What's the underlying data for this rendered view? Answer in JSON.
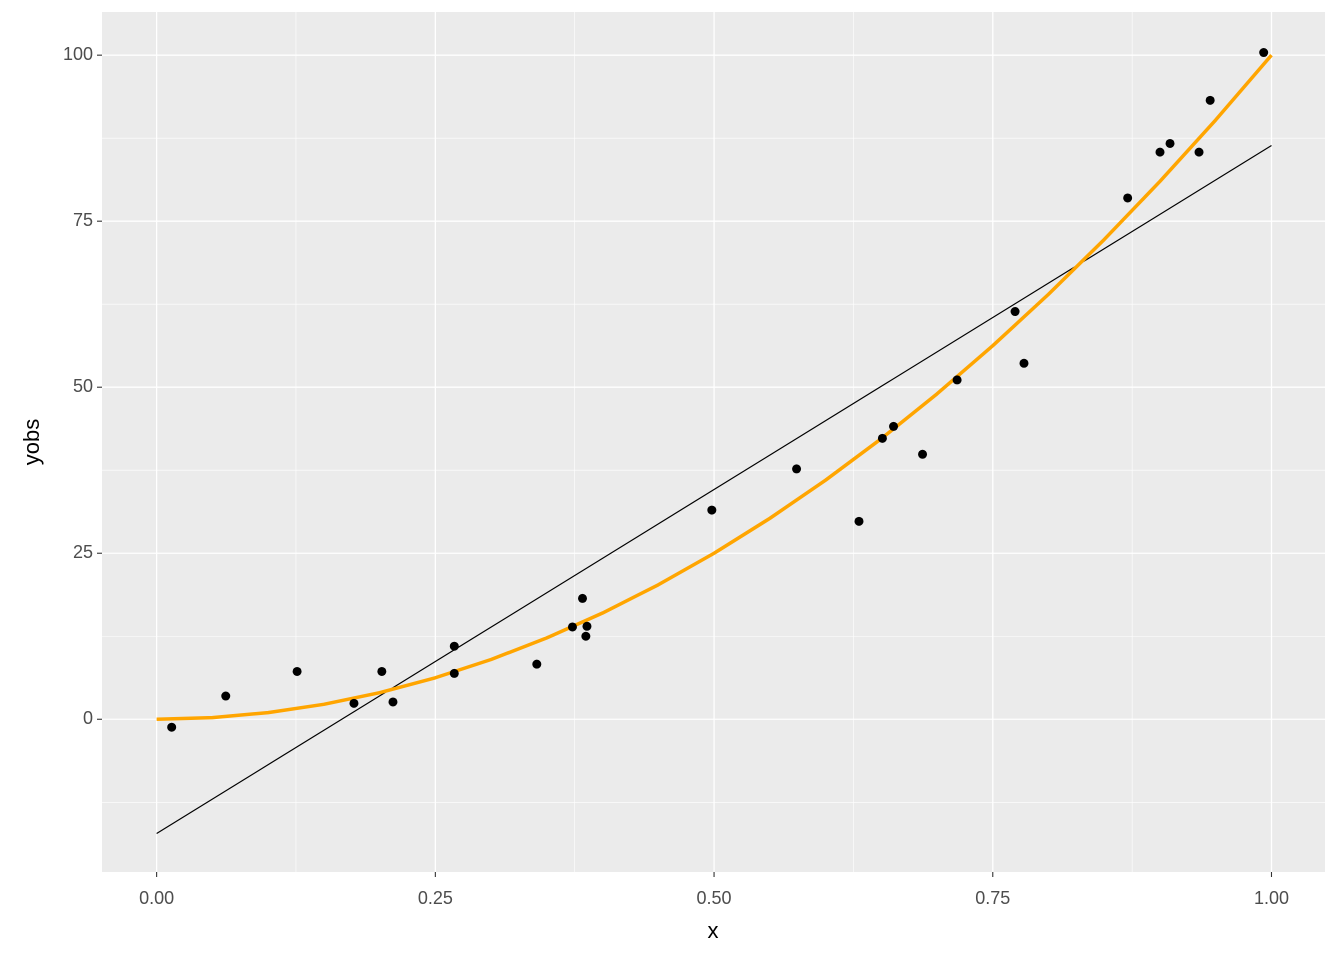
{
  "chart_data": {
    "type": "scatter",
    "xlabel": "x",
    "ylabel": "yobs",
    "xlim": [
      -0.049,
      1.048
    ],
    "ylim": [
      -23,
      106.5
    ],
    "xticks": [
      {
        "value": 0,
        "label": "0.00"
      },
      {
        "value": 0.25,
        "label": "0.25"
      },
      {
        "value": 0.5,
        "label": "0.50"
      },
      {
        "value": 0.75,
        "label": "0.75"
      },
      {
        "value": 1,
        "label": "1.00"
      }
    ],
    "yticks": [
      0,
      25,
      50,
      75,
      100
    ],
    "xminor": [
      0.125,
      0.375,
      0.625,
      0.875
    ],
    "yminor": [
      -12.5,
      12.5,
      37.5,
      62.5,
      87.5
    ],
    "grid": true,
    "color": "#000000",
    "x": [
      0.0135,
      0.062,
      0.126,
      0.177,
      0.202,
      0.212,
      0.267,
      0.267,
      0.341,
      0.373,
      0.382,
      0.386,
      0.385,
      0.498,
      0.574,
      0.63,
      0.651,
      0.661,
      0.687,
      0.718,
      0.77,
      0.778,
      0.871,
      0.9,
      0.909,
      0.935,
      0.945,
      0.993
    ],
    "values": [
      -1.2,
      3.5,
      7.2,
      2.4,
      7.2,
      2.6,
      11.0,
      6.9,
      8.3,
      13.9,
      18.2,
      14.0,
      12.5,
      31.5,
      37.7,
      29.8,
      42.3,
      44.1,
      39.9,
      51.1,
      61.4,
      53.6,
      78.5,
      85.4,
      86.7,
      85.4,
      93.2,
      100.4
    ],
    "lines": [
      {
        "color": "#000000",
        "width": 1.2,
        "x": [
          0,
          1
        ],
        "values": [
          -17.2,
          86.4
        ]
      },
      {
        "color": "#FFA500",
        "width": 3.5,
        "x": [
          0,
          0.05,
          0.1,
          0.15,
          0.2,
          0.25,
          0.3,
          0.35,
          0.4,
          0.45,
          0.5,
          0.55,
          0.6,
          0.65,
          0.7,
          0.75,
          0.8,
          0.85,
          0.9,
          0.95,
          1
        ],
        "values": [
          0,
          0.25,
          1,
          2.25,
          4,
          6.25,
          9,
          12.25,
          16,
          20.25,
          25,
          30.25,
          36,
          42.25,
          49,
          56.25,
          64,
          72.25,
          81,
          90.25,
          100
        ]
      }
    ]
  }
}
